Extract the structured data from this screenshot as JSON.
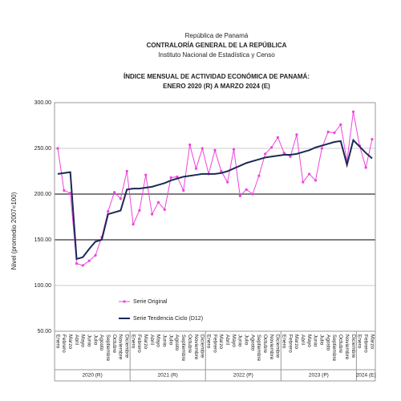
{
  "chart_data": {
    "type": "line",
    "header": [
      "República de Panamá",
      "CONTRALORÍA GENERAL DE LA REPÚBLICA",
      "Instituto Nacional de Estadística y Censo"
    ],
    "title": "ÍNDICE MENSUAL DE ACTIVIDAD ECONÓMICA DE PANAMÁ:",
    "subtitle": "ENERO 2020 (R) A MARZO 2024 (E)",
    "y_label": "Nivel (promedio 2007=100)",
    "categories": [
      "Enero",
      "Febrero",
      "Marzo",
      "Abril",
      "Mayo",
      "Junio",
      "Julio",
      "Agosto",
      "Septiembre",
      "Octubre",
      "Noviembre",
      "Diciembre",
      "Enero",
      "Febrero",
      "Marzo",
      "Abril",
      "Mayo",
      "Junio",
      "Julio",
      "Agosto",
      "Septiembre",
      "Octubre",
      "Noviembre",
      "Diciembre",
      "Enero",
      "Febrero",
      "Marzo",
      "Abril",
      "Mayo",
      "Junio",
      "Julio",
      "Agosto",
      "Septiembre",
      "Octubre",
      "Noviembre",
      "Diciembre",
      "Enero",
      "Febrero",
      "Marzo",
      "Abril",
      "Mayo",
      "Junio",
      "Julio",
      "Agosto",
      "Septiembre",
      "Octubre",
      "Noviembre",
      "Diciembre",
      "Enero",
      "Febrero",
      "Marzo"
    ],
    "year_groups": [
      "2020 (R)",
      "2021 (R)",
      "2022 (P)",
      "2023 (P)",
      "2024 (E)"
    ],
    "series": [
      {
        "name": "Serie Original",
        "color": "#ee44dd",
        "marker": true,
        "values": [
          250,
          204,
          201,
          124,
          122,
          127,
          133,
          153,
          181,
          202,
          195,
          225,
          167,
          182,
          221,
          178,
          191,
          183,
          218,
          219,
          204,
          254,
          228,
          250,
          222,
          248,
          225,
          213,
          249,
          198,
          205,
          200,
          220,
          244,
          251,
          262,
          245,
          241,
          265,
          213,
          222,
          215,
          250,
          268,
          267,
          276,
          236,
          290,
          253,
          229,
          260
        ]
      },
      {
        "name": "Serie Tendencia Ciclo (D12)",
        "color": "#1a2a55",
        "marker": false,
        "values": [
          222,
          223,
          224,
          129,
          131,
          140,
          148,
          150,
          178,
          180,
          182,
          205,
          206,
          206,
          207,
          208,
          210,
          212,
          215,
          217,
          219,
          220,
          221,
          222,
          222,
          222,
          223,
          225,
          228,
          231,
          234,
          236,
          238,
          240,
          241,
          242,
          243,
          243,
          244,
          246,
          248,
          251,
          253,
          255,
          257,
          258,
          232,
          259,
          252,
          245,
          239
        ]
      }
    ],
    "ylim": [
      50,
      300
    ],
    "yticks": [
      {
        "value": 50,
        "label": "50.00"
      },
      {
        "value": 100,
        "label": "100.00"
      },
      {
        "value": 150,
        "label": "150.00"
      },
      {
        "value": 200,
        "label": "200.00"
      },
      {
        "value": 250,
        "label": "250.00"
      },
      {
        "value": 300,
        "label": "300.00"
      }
    ],
    "grid": true
  }
}
